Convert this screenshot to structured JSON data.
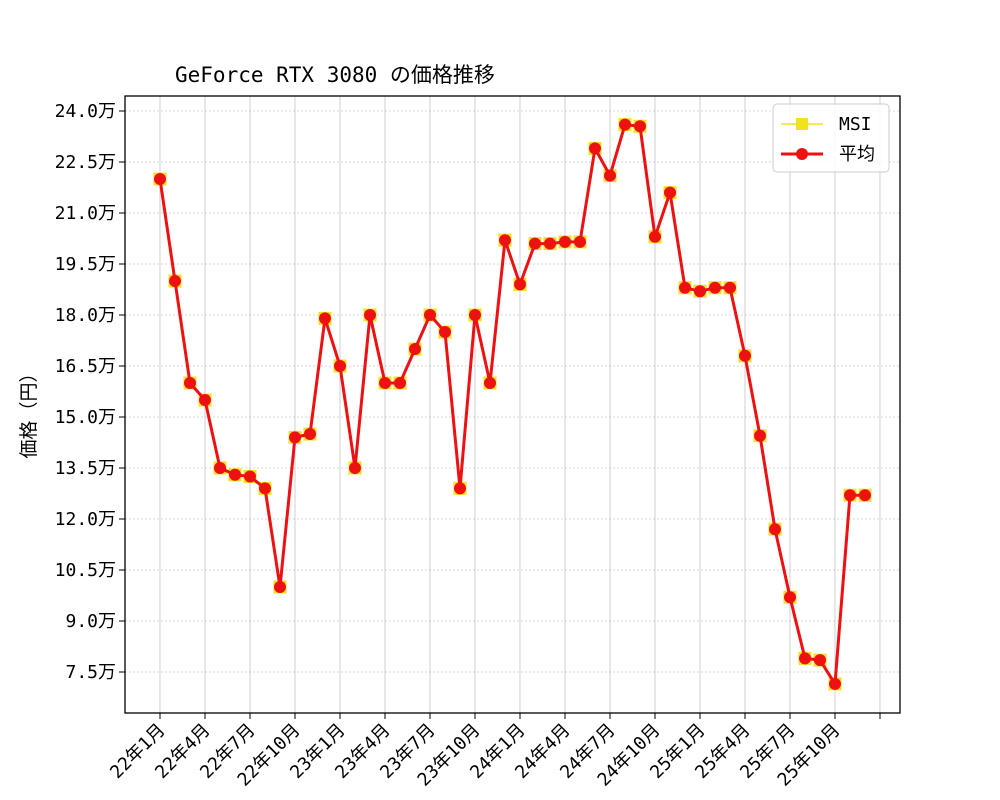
{
  "chart_data": {
    "type": "line",
    "title": "GeForce RTX 3080 の価格推移",
    "ylabel": "価格（円）",
    "xlabel": "",
    "ylim": [
      63000,
      246000
    ],
    "y_ticks": [
      75000,
      90000,
      105000,
      120000,
      135000,
      150000,
      165000,
      180000,
      195000,
      210000,
      225000,
      240000
    ],
    "y_tick_labels": [
      "7.5万",
      "9.0万",
      "10.5万",
      "12.0万",
      "13.5万",
      "15.0万",
      "16.5万",
      "18.0万",
      "19.5万",
      "21.0万",
      "22.5万",
      "24.0万"
    ],
    "x_ticks": [
      "22年1月",
      "22年4月",
      "22年7月",
      "22年10月",
      "23年1月",
      "23年4月",
      "23年7月",
      "23年10月",
      "24年1月",
      "24年4月",
      "24年7月",
      "24年10月",
      "25年1月",
      "25年4月",
      "25年7月",
      "25年10月"
    ],
    "grid": true,
    "legend_position": "top-right",
    "series": [
      {
        "name": "MSI",
        "color": "#f0e21f",
        "marker": "square",
        "values": [
          220000,
          190000,
          160000,
          155000,
          135000,
          133000,
          132500,
          129000,
          100000,
          144000,
          145000,
          179000,
          165000,
          135000,
          180000,
          160000,
          160000,
          170000,
          180000,
          175000,
          129000,
          180000,
          160000,
          202000,
          189000,
          201000,
          201000,
          201500,
          201500,
          229000,
          221000,
          236000,
          235500,
          203000,
          216000,
          188000,
          187000,
          188000,
          188000,
          168000,
          144500,
          117000,
          97000,
          79000,
          78500,
          71500,
          127000,
          127000
        ]
      },
      {
        "name": "平均",
        "color": "#ee1111",
        "marker": "circle",
        "values": [
          220000,
          190000,
          160000,
          155000,
          135000,
          133000,
          132500,
          129000,
          100000,
          144000,
          145000,
          179000,
          165000,
          135000,
          180000,
          160000,
          160000,
          170000,
          180000,
          175000,
          129000,
          180000,
          160000,
          202000,
          189000,
          201000,
          201000,
          201500,
          201500,
          229000,
          221000,
          236000,
          235500,
          203000,
          216000,
          188000,
          187000,
          188000,
          188000,
          168000,
          144500,
          117000,
          97000,
          79000,
          78500,
          71500,
          127000,
          127000
        ]
      }
    ]
  }
}
